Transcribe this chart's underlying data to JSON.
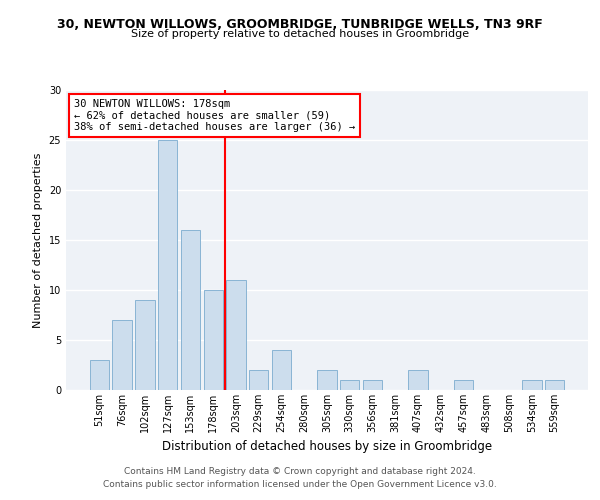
{
  "title1": "30, NEWTON WILLOWS, GROOMBRIDGE, TUNBRIDGE WELLS, TN3 9RF",
  "title2": "Size of property relative to detached houses in Groombridge",
  "xlabel": "Distribution of detached houses by size in Groombridge",
  "ylabel": "Number of detached properties",
  "categories": [
    "51sqm",
    "76sqm",
    "102sqm",
    "127sqm",
    "153sqm",
    "178sqm",
    "203sqm",
    "229sqm",
    "254sqm",
    "280sqm",
    "305sqm",
    "330sqm",
    "356sqm",
    "381sqm",
    "407sqm",
    "432sqm",
    "457sqm",
    "483sqm",
    "508sqm",
    "534sqm",
    "559sqm"
  ],
  "bar_values": [
    3,
    7,
    9,
    25,
    16,
    10,
    11,
    2,
    4,
    0,
    2,
    1,
    1,
    0,
    2,
    0,
    1,
    0,
    0,
    1,
    1
  ],
  "bar_color": "#ccdded",
  "bar_edge_color": "#89b4d4",
  "vline_index": 5,
  "vline_color": "red",
  "annotation_text": "30 NEWTON WILLOWS: 178sqm\n← 62% of detached houses are smaller (59)\n38% of semi-detached houses are larger (36) →",
  "annotation_box_color": "white",
  "annotation_box_edge_color": "red",
  "ylim": [
    0,
    30
  ],
  "yticks": [
    0,
    5,
    10,
    15,
    20,
    25,
    30
  ],
  "plot_bg_color": "#eef2f7",
  "fig_bg_color": "#ffffff",
  "footer1": "Contains HM Land Registry data © Crown copyright and database right 2024.",
  "footer2": "Contains public sector information licensed under the Open Government Licence v3.0.",
  "title1_fontsize": 9,
  "title2_fontsize": 8,
  "ylabel_fontsize": 8,
  "xlabel_fontsize": 8.5,
  "tick_fontsize": 7,
  "annotation_fontsize": 7.5,
  "footer_fontsize": 6.5
}
